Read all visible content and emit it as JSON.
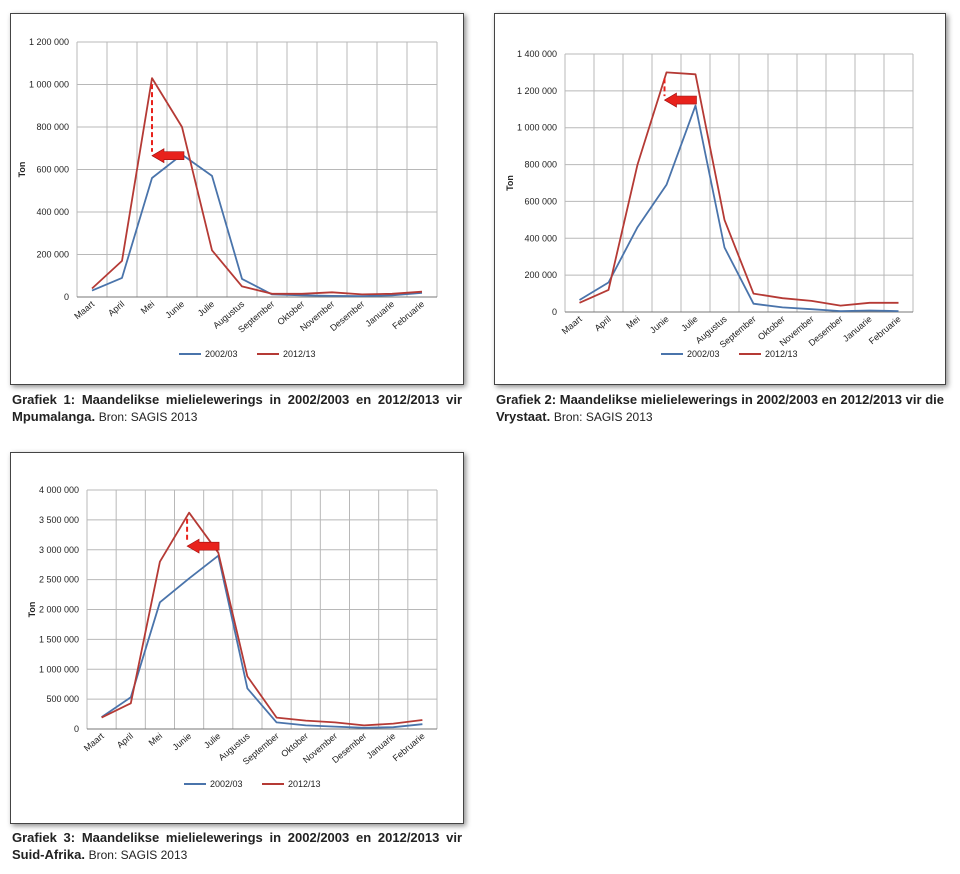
{
  "colors": {
    "series_2002": "#4a74ab",
    "series_2012": "#b53a35",
    "arrow": "#e8221c",
    "grid": "#b8b8b8"
  },
  "chart_data": [
    {
      "type": "line",
      "ylabel": "Ton",
      "ylim": [
        0,
        1200000
      ],
      "yticks": [
        0,
        200000,
        400000,
        600000,
        800000,
        1000000,
        1200000
      ],
      "ytick_labels": [
        "0",
        "200 000",
        "400 000",
        "600 000",
        "800 000",
        "1 000 000",
        "1 200 000"
      ],
      "categories": [
        "Maart",
        "April",
        "Mei",
        "Junie",
        "Julie",
        "Augustus",
        "September",
        "Oktober",
        "November",
        "Desember",
        "Januarie",
        "Februarie"
      ],
      "series": [
        {
          "name": "2002/03",
          "values": [
            30000,
            90000,
            560000,
            670000,
            570000,
            85000,
            12000,
            8000,
            5000,
            4000,
            8000,
            20000
          ]
        },
        {
          "name": "2012/13",
          "values": [
            40000,
            170000,
            1030000,
            800000,
            220000,
            50000,
            15000,
            15000,
            22000,
            12000,
            15000,
            25000
          ]
        }
      ],
      "annotation": {
        "peak_index": 2,
        "peak_value": 1030000,
        "arrow_y": 665000
      },
      "legend": "bottom",
      "grid": true,
      "caption": {
        "label": "Grafiek 1: Maandelikse mielielewerings in 2002/2003 en 2012/2013 vir Mpumalanga.",
        "source": "Bron: SAGIS 2013"
      }
    },
    {
      "type": "line",
      "ylabel": "Ton",
      "ylim": [
        0,
        1400000
      ],
      "yticks": [
        0,
        200000,
        400000,
        600000,
        800000,
        1000000,
        1200000,
        1400000
      ],
      "ytick_labels": [
        "0",
        "200 000",
        "400 000",
        "600 000",
        "800 000",
        "1 000 000",
        "1 200 000",
        "1 400 000"
      ],
      "categories": [
        "Maart",
        "April",
        "Mei",
        "Junie",
        "Julie",
        "Augustus",
        "September",
        "Oktober",
        "November",
        "Desember",
        "Januarie",
        "Februarie"
      ],
      "series": [
        {
          "name": "2002/03",
          "values": [
            65000,
            160000,
            460000,
            690000,
            1120000,
            350000,
            45000,
            25000,
            15000,
            5000,
            8000,
            5000
          ]
        },
        {
          "name": "2012/13",
          "values": [
            50000,
            120000,
            800000,
            1300000,
            1290000,
            500000,
            100000,
            75000,
            60000,
            35000,
            50000,
            50000
          ]
        }
      ],
      "annotation": {
        "peak_index": 3,
        "peak_value": 1300000,
        "arrow_y": 1150000
      },
      "legend": "bottom",
      "grid": true,
      "caption": {
        "label": "Grafiek 2: Maandelikse mielielewerings in 2002/2003 en 2012/2013 vir die Vrystaat.",
        "source": "Bron: SAGIS 2013"
      }
    },
    {
      "type": "line",
      "ylabel": "Ton",
      "ylim": [
        0,
        4000000
      ],
      "yticks": [
        0,
        500000,
        1000000,
        1500000,
        2000000,
        2500000,
        3000000,
        3500000,
        4000000
      ],
      "ytick_labels": [
        "0",
        "500 000",
        "1 000 000",
        "1 500 000",
        "2 000 000",
        "2 500 000",
        "3 000 000",
        "3 500 000",
        "4 000 000"
      ],
      "categories": [
        "Maart",
        "April",
        "Mei",
        "Junie",
        "Julie",
        "Augustus",
        "September",
        "Oktober",
        "November",
        "Desember",
        "Januarie",
        "Februarie"
      ],
      "series": [
        {
          "name": "2002/03",
          "values": [
            200000,
            530000,
            2120000,
            2520000,
            2900000,
            680000,
            110000,
            60000,
            40000,
            20000,
            30000,
            80000
          ]
        },
        {
          "name": "2012/13",
          "values": [
            190000,
            430000,
            2800000,
            3620000,
            2950000,
            880000,
            190000,
            140000,
            110000,
            60000,
            90000,
            150000
          ]
        }
      ],
      "annotation": {
        "peak_index": 3,
        "peak_value": 3620000,
        "arrow_y": 3060000
      },
      "legend": "bottom",
      "grid": true,
      "caption": {
        "label": "Grafiek 3: Maandelikse mielielewerings in 2002/2003 en 2012/2013 vir Suid-Afrika.",
        "source": "Bron: SAGIS 2013"
      }
    }
  ]
}
